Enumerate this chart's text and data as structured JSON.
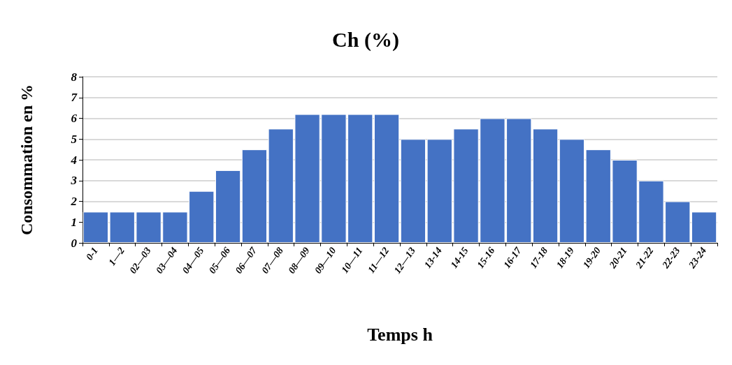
{
  "chart_data": {
    "type": "bar",
    "title": "Ch (%)",
    "xlabel": "Temps h",
    "ylabel": "Consommation en %",
    "categories": [
      "0-1",
      "1—2",
      "02—03",
      "03—04",
      "04—05",
      "05—06",
      "06—07",
      "07—08",
      "08—09",
      "09—10",
      "10—11",
      "11—12",
      "12—13",
      "13-14",
      "14-15",
      "15-16",
      "16-17",
      "17-18",
      "18-19",
      "19-20",
      "20-21",
      "21-22",
      "22-23",
      "23-24"
    ],
    "values": [
      1.5,
      1.5,
      1.5,
      1.5,
      2.5,
      3.5,
      4.5,
      5.5,
      6.2,
      6.2,
      6.2,
      6.2,
      5,
      5,
      5.5,
      6,
      6,
      5.5,
      5,
      4.5,
      4,
      3,
      2,
      1.5
    ],
    "color": "#4472c4",
    "ylim": [
      0,
      8
    ],
    "yticks": [
      0,
      1,
      2,
      3,
      4,
      5,
      6,
      7,
      8
    ],
    "grid": "y"
  }
}
